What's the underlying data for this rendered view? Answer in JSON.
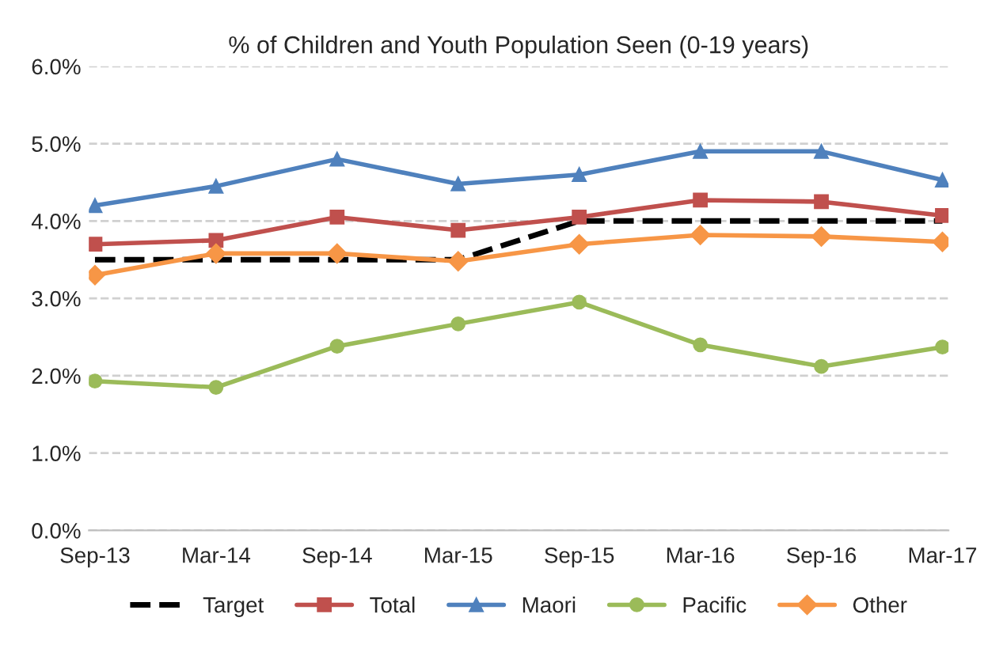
{
  "chart_data": {
    "type": "line",
    "title": "% of Children and Youth Population Seen (0-19 years)",
    "categories": [
      "Sep-13",
      "Mar-14",
      "Sep-14",
      "Mar-15",
      "Sep-15",
      "Mar-16",
      "Sep-16",
      "Mar-17"
    ],
    "series": [
      {
        "name": "Target",
        "color": "#000000",
        "line_style": "dashed",
        "marker": "none",
        "values": [
          3.5,
          3.5,
          3.5,
          3.5,
          4.0,
          4.0,
          4.0,
          4.0
        ]
      },
      {
        "name": "Total",
        "color": "#c0504d",
        "line_style": "solid",
        "marker": "square",
        "values": [
          3.7,
          3.75,
          4.05,
          3.88,
          4.05,
          4.27,
          4.25,
          4.07
        ]
      },
      {
        "name": "Maori",
        "color": "#4f81bd",
        "line_style": "solid",
        "marker": "triangle",
        "values": [
          4.2,
          4.45,
          4.8,
          4.48,
          4.6,
          4.9,
          4.9,
          4.53
        ]
      },
      {
        "name": "Pacific",
        "color": "#9bbb59",
        "line_style": "solid",
        "marker": "circle",
        "values": [
          1.93,
          1.85,
          2.38,
          2.67,
          2.95,
          2.4,
          2.12,
          2.37
        ]
      },
      {
        "name": "Other",
        "color": "#f79646",
        "line_style": "solid",
        "marker": "diamond",
        "values": [
          3.3,
          3.58,
          3.58,
          3.48,
          3.7,
          3.82,
          3.8,
          3.73
        ]
      }
    ],
    "ylim": [
      0,
      6
    ],
    "yticks": [
      {
        "value": 0,
        "label": "0.0%"
      },
      {
        "value": 1,
        "label": "1.0%"
      },
      {
        "value": 2,
        "label": "2.0%"
      },
      {
        "value": 3,
        "label": "3.0%"
      },
      {
        "value": 4,
        "label": "4.0%"
      },
      {
        "value": 5,
        "label": "5.0%"
      },
      {
        "value": 6,
        "label": "6.0%"
      }
    ],
    "grid": "y",
    "legend": "bottom"
  }
}
